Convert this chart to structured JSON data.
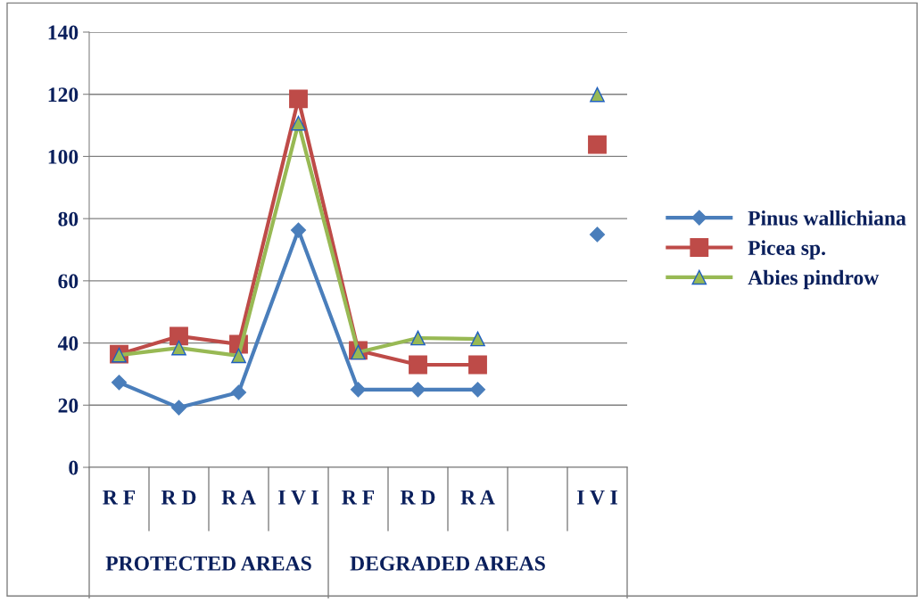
{
  "chart_data": {
    "type": "line",
    "categories": [
      "R F",
      "R D",
      "R A",
      "I V I",
      "R F",
      "R D",
      "R A",
      null,
      "I V I"
    ],
    "series": [
      {
        "name": "Pinus wallichiana",
        "color": "#4a7ebb",
        "marker": "diamond",
        "values": [
          27.3,
          19.2,
          24.1,
          76.3,
          25,
          25,
          25,
          null,
          74.9
        ]
      },
      {
        "name": "Picea sp.",
        "color": "#be4b48",
        "marker": "square",
        "values": [
          36.4,
          42.2,
          39.6,
          118.5,
          37.6,
          33,
          33,
          null,
          103.8
        ]
      },
      {
        "name": "Abies pindrow",
        "color": "#98b954",
        "marker": "triangle",
        "values": [
          36.1,
          38.4,
          35.9,
          110.7,
          37,
          41.6,
          41.3,
          null,
          119.9
        ]
      }
    ],
    "ylim": [
      0,
      140
    ],
    "yticks": [
      0,
      20,
      40,
      60,
      80,
      100,
      120,
      140
    ],
    "grid": "y",
    "legend": "right",
    "annotations": [
      "PROTECTED AREAS",
      "DEGRADED AREAS"
    ]
  }
}
